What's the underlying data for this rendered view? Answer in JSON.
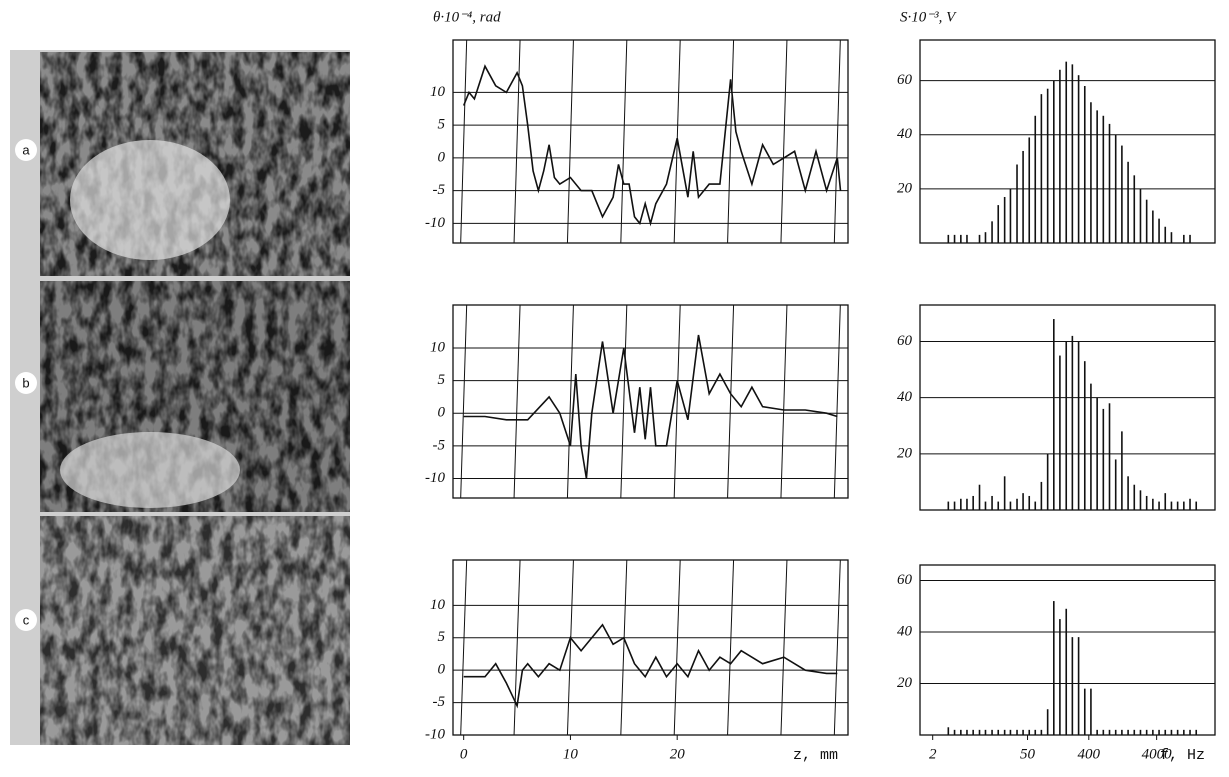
{
  "panel_labels": [
    "a",
    "b",
    "c"
  ],
  "chart_data": [
    {
      "type": "line",
      "ylabel": "θ·10⁻⁴, rad",
      "xlim": [
        -1,
        36
      ],
      "ylim": [
        -13,
        18
      ],
      "yticks": [
        10,
        5,
        0,
        -5,
        -10
      ],
      "xgrid": [
        0,
        5,
        10,
        15,
        20,
        25,
        30,
        35
      ],
      "color": "#111111",
      "x": [
        0,
        0.5,
        1,
        2,
        3,
        4,
        5,
        5.5,
        6,
        6.5,
        7,
        7.5,
        8,
        8.5,
        9,
        10,
        11,
        12,
        13,
        14,
        14.5,
        15,
        15.5,
        16,
        16.5,
        17,
        17.5,
        18,
        19,
        20,
        21,
        21.5,
        22,
        23,
        24,
        25,
        25.5,
        26,
        27,
        28,
        29,
        30,
        31,
        32,
        33,
        34,
        35,
        35.3
      ],
      "values": [
        8,
        10,
        9,
        14,
        11,
        10,
        13,
        11,
        5,
        -2,
        -5,
        -2,
        2,
        -3,
        -4,
        -3,
        -5,
        -5,
        -9,
        -6,
        -1,
        -4,
        -4,
        -9,
        -10,
        -7,
        -10,
        -7,
        -4,
        3,
        -6,
        1,
        -6,
        -4,
        -4,
        12,
        4,
        1,
        -4,
        2,
        -1,
        0,
        1,
        -5,
        1,
        -5,
        0,
        -5
      ]
    },
    {
      "type": "line",
      "xlim": [
        -1,
        36
      ],
      "ylim": [
        -13,
        16.6
      ],
      "yticks": [
        10,
        5,
        0,
        -5,
        -10
      ],
      "xgrid": [
        0,
        5,
        10,
        15,
        20,
        25,
        30,
        35
      ],
      "color": "#111111",
      "x": [
        0,
        2,
        4,
        6,
        8,
        9,
        10,
        10.5,
        11,
        11.5,
        12,
        13,
        14,
        15,
        16,
        16.5,
        17,
        17.5,
        18,
        19,
        20,
        21,
        22,
        23,
        24,
        25,
        26,
        27,
        28,
        30,
        32,
        34,
        35
      ],
      "values": [
        -0.5,
        -0.5,
        -1,
        -1,
        2.5,
        0,
        -5,
        6,
        -5,
        -10,
        0,
        11,
        0,
        10,
        -3,
        4,
        -4,
        4,
        -5,
        -5,
        5,
        -1,
        12,
        3,
        6,
        3,
        1,
        4,
        1,
        0.5,
        0.5,
        0,
        -0.5
      ]
    },
    {
      "type": "line",
      "xlabel": "z,  mm",
      "xlim": [
        -1,
        36
      ],
      "ylim": [
        -10,
        17
      ],
      "yticks": [
        10,
        5,
        0,
        -5,
        -10
      ],
      "xticks": [
        0,
        10,
        20
      ],
      "xgrid": [
        0,
        5,
        10,
        15,
        20,
        25,
        30,
        35
      ],
      "color": "#111111",
      "x": [
        0,
        2,
        3,
        4,
        5,
        5.5,
        6,
        7,
        8,
        9,
        10,
        11,
        12,
        13,
        14,
        15,
        16,
        17,
        18,
        19,
        20,
        21,
        22,
        23,
        24,
        25,
        26,
        27,
        28,
        30,
        32,
        34,
        35
      ],
      "values": [
        -1,
        -1,
        1,
        -2,
        -5.5,
        0,
        1,
        -1,
        1,
        0,
        5,
        3,
        5,
        7,
        4,
        5,
        1,
        -1,
        2,
        -1,
        1,
        -1,
        3,
        0,
        2,
        1,
        3,
        2,
        1,
        2,
        0,
        -0.5,
        -0.5
      ]
    },
    {
      "type": "bar",
      "ylabel": "S·10⁻³, V",
      "xscale": "log",
      "xlim": [
        1.3,
        29000
      ],
      "ylim": [
        0,
        75
      ],
      "yticks": [
        20,
        40,
        60
      ],
      "color": "#111111",
      "x": [
        3.4,
        4.2,
        5.2,
        6.4,
        7.9,
        9.8,
        12,
        15,
        18.5,
        23,
        28,
        35,
        43,
        53,
        65,
        80,
        99,
        122,
        150,
        186,
        229,
        283,
        349,
        430,
        531,
        655,
        808,
        997,
        1230,
        1518,
        1873,
        2311,
        2852,
        3519,
        4343,
        5359,
        6613,
        8160,
        10070,
        12425,
        15333
      ],
      "values": [
        3,
        3,
        3,
        3,
        0,
        3,
        4,
        8,
        14,
        17,
        20,
        29,
        34,
        39,
        47,
        55,
        57,
        60,
        64,
        67,
        66,
        62,
        58,
        52,
        49,
        47,
        44,
        40,
        36,
        30,
        25,
        20,
        16,
        12,
        9,
        6,
        4,
        0,
        3,
        3,
        0
      ]
    },
    {
      "type": "bar",
      "xscale": "log",
      "xlim": [
        1.3,
        29000
      ],
      "ylim": [
        0,
        73
      ],
      "yticks": [
        20,
        40,
        60
      ],
      "color": "#111111",
      "x": [
        3.4,
        4.2,
        5.2,
        6.4,
        7.9,
        9.8,
        12,
        15,
        18.5,
        23,
        28,
        35,
        43,
        53,
        65,
        80,
        99,
        122,
        150,
        186,
        229,
        283,
        349,
        430,
        531,
        655,
        808,
        997,
        1230,
        1518,
        1873,
        2311,
        2852,
        3519,
        4343,
        5359,
        6613,
        8160,
        10070,
        12425,
        15333
      ],
      "values": [
        3,
        3,
        4,
        4,
        5,
        9,
        3,
        5,
        3,
        12,
        3,
        4,
        6,
        5,
        3,
        10,
        20,
        68,
        55,
        60,
        62,
        60,
        53,
        45,
        40,
        36,
        38,
        18,
        28,
        12,
        9,
        7,
        5,
        4,
        3,
        6,
        3,
        3,
        3,
        4,
        3
      ]
    },
    {
      "type": "bar",
      "xlabel": "f, Hz",
      "xscale": "log",
      "xlim": [
        1.3,
        29000
      ],
      "ylim": [
        0,
        66
      ],
      "yticks": [
        20,
        40,
        60
      ],
      "xticks": [
        2,
        50,
        400,
        4000
      ],
      "color": "#111111",
      "x": [
        3.4,
        4.2,
        5.2,
        6.4,
        7.9,
        9.8,
        12,
        15,
        18.5,
        23,
        28,
        35,
        43,
        53,
        65,
        80,
        99,
        122,
        150,
        186,
        229,
        283,
        349,
        430,
        531,
        655,
        808,
        997,
        1230,
        1518,
        1873,
        2311,
        2852,
        3519,
        4343,
        5359,
        6613,
        8160,
        10070,
        12425,
        15333
      ],
      "values": [
        3,
        2,
        2,
        2,
        2,
        2,
        2,
        2,
        2,
        2,
        2,
        2,
        2,
        2,
        2,
        2,
        10,
        52,
        45,
        49,
        38,
        38,
        18,
        18,
        2,
        2,
        2,
        2,
        2,
        2,
        2,
        2,
        2,
        2,
        2,
        2,
        2,
        2,
        2,
        2,
        2
      ]
    }
  ]
}
